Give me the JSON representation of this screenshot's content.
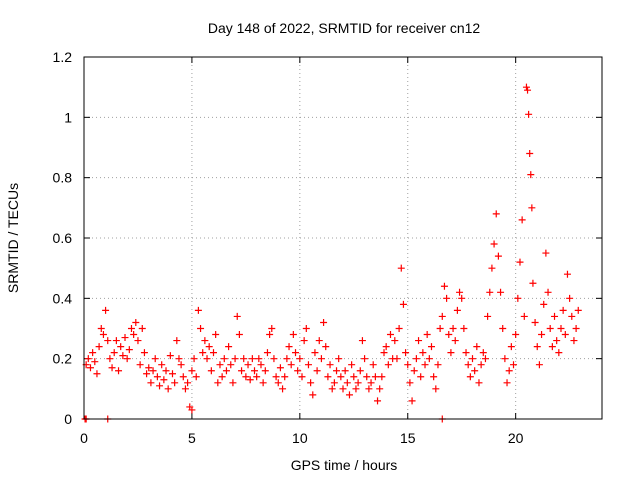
{
  "chart_data": {
    "type": "scatter",
    "title": "Day 148 of 2022, SRMTID for receiver cn12",
    "xlabel": "GPS time / hours",
    "ylabel": "SRMTID / TECUs",
    "xlim": [
      0,
      24
    ],
    "ylim": [
      0,
      1.2
    ],
    "xticks": [
      0,
      5,
      10,
      15,
      20
    ],
    "xtick_labels": [
      "0",
      "5",
      "10",
      "15",
      "20"
    ],
    "yticks": [
      0,
      0.2,
      0.4,
      0.6,
      0.8,
      1.0,
      1.2
    ],
    "ytick_labels": [
      "0",
      "0.2",
      "0.4",
      "0.6",
      "0.8",
      "1",
      "1.2"
    ],
    "grid": true,
    "marker": "+",
    "series": [
      {
        "name": "SRMTID",
        "color": "#ff0000",
        "points": [
          [
            0.05,
            0.0
          ],
          [
            0.1,
            0.0
          ],
          [
            1.1,
            0.0
          ],
          [
            16.6,
            0.0
          ],
          [
            0.1,
            0.18
          ],
          [
            0.2,
            0.2
          ],
          [
            0.3,
            0.17
          ],
          [
            0.4,
            0.22
          ],
          [
            0.5,
            0.19
          ],
          [
            0.6,
            0.15
          ],
          [
            0.7,
            0.24
          ],
          [
            0.8,
            0.3
          ],
          [
            0.9,
            0.28
          ],
          [
            1.0,
            0.36
          ],
          [
            1.1,
            0.26
          ],
          [
            1.2,
            0.2
          ],
          [
            1.3,
            0.17
          ],
          [
            1.4,
            0.22
          ],
          [
            1.5,
            0.26
          ],
          [
            1.6,
            0.16
          ],
          [
            1.7,
            0.24
          ],
          [
            1.8,
            0.21
          ],
          [
            1.9,
            0.27
          ],
          [
            2.0,
            0.2
          ],
          [
            2.1,
            0.23
          ],
          [
            2.2,
            0.3
          ],
          [
            2.3,
            0.28
          ],
          [
            2.4,
            0.32
          ],
          [
            2.5,
            0.26
          ],
          [
            2.6,
            0.18
          ],
          [
            2.7,
            0.3
          ],
          [
            2.8,
            0.22
          ],
          [
            2.9,
            0.15
          ],
          [
            3.0,
            0.17
          ],
          [
            3.1,
            0.12
          ],
          [
            3.2,
            0.16
          ],
          [
            3.3,
            0.2
          ],
          [
            3.4,
            0.14
          ],
          [
            3.5,
            0.11
          ],
          [
            3.6,
            0.18
          ],
          [
            3.7,
            0.13
          ],
          [
            3.8,
            0.16
          ],
          [
            3.9,
            0.1
          ],
          [
            4.0,
            0.21
          ],
          [
            4.1,
            0.15
          ],
          [
            4.2,
            0.12
          ],
          [
            4.3,
            0.26
          ],
          [
            4.4,
            0.2
          ],
          [
            4.5,
            0.18
          ],
          [
            4.6,
            0.14
          ],
          [
            4.7,
            0.1
          ],
          [
            4.8,
            0.12
          ],
          [
            4.9,
            0.04
          ],
          [
            5.0,
            0.03
          ],
          [
            5.0,
            0.16
          ],
          [
            5.1,
            0.2
          ],
          [
            5.2,
            0.14
          ],
          [
            5.3,
            0.36
          ],
          [
            5.4,
            0.3
          ],
          [
            5.5,
            0.22
          ],
          [
            5.6,
            0.26
          ],
          [
            5.7,
            0.2
          ],
          [
            5.8,
            0.24
          ],
          [
            5.9,
            0.16
          ],
          [
            6.0,
            0.22
          ],
          [
            6.1,
            0.28
          ],
          [
            6.2,
            0.12
          ],
          [
            6.3,
            0.18
          ],
          [
            6.4,
            0.14
          ],
          [
            6.5,
            0.2
          ],
          [
            6.6,
            0.16
          ],
          [
            6.7,
            0.24
          ],
          [
            6.8,
            0.18
          ],
          [
            6.9,
            0.12
          ],
          [
            7.0,
            0.2
          ],
          [
            7.1,
            0.34
          ],
          [
            7.2,
            0.28
          ],
          [
            7.3,
            0.16
          ],
          [
            7.4,
            0.2
          ],
          [
            7.5,
            0.14
          ],
          [
            7.6,
            0.18
          ],
          [
            7.7,
            0.13
          ],
          [
            7.8,
            0.2
          ],
          [
            7.9,
            0.16
          ],
          [
            8.0,
            0.14
          ],
          [
            8.1,
            0.2
          ],
          [
            8.2,
            0.18
          ],
          [
            8.3,
            0.12
          ],
          [
            8.4,
            0.16
          ],
          [
            8.5,
            0.22
          ],
          [
            8.6,
            0.28
          ],
          [
            8.7,
            0.3
          ],
          [
            8.8,
            0.2
          ],
          [
            8.9,
            0.14
          ],
          [
            9.0,
            0.12
          ],
          [
            9.1,
            0.17
          ],
          [
            9.2,
            0.1
          ],
          [
            9.3,
            0.14
          ],
          [
            9.4,
            0.2
          ],
          [
            9.5,
            0.24
          ],
          [
            9.6,
            0.18
          ],
          [
            9.7,
            0.28
          ],
          [
            9.8,
            0.22
          ],
          [
            9.9,
            0.16
          ],
          [
            10.0,
            0.2
          ],
          [
            10.1,
            0.14
          ],
          [
            10.2,
            0.26
          ],
          [
            10.3,
            0.3
          ],
          [
            10.4,
            0.18
          ],
          [
            10.5,
            0.12
          ],
          [
            10.6,
            0.08
          ],
          [
            10.7,
            0.22
          ],
          [
            10.8,
            0.16
          ],
          [
            10.9,
            0.26
          ],
          [
            11.0,
            0.2
          ],
          [
            11.1,
            0.32
          ],
          [
            11.2,
            0.24
          ],
          [
            11.3,
            0.14
          ],
          [
            11.4,
            0.18
          ],
          [
            11.5,
            0.1
          ],
          [
            11.6,
            0.12
          ],
          [
            11.7,
            0.16
          ],
          [
            11.8,
            0.2
          ],
          [
            11.9,
            0.14
          ],
          [
            12.0,
            0.1
          ],
          [
            12.1,
            0.16
          ],
          [
            12.2,
            0.12
          ],
          [
            12.3,
            0.08
          ],
          [
            12.4,
            0.18
          ],
          [
            12.5,
            0.14
          ],
          [
            12.6,
            0.1
          ],
          [
            12.7,
            0.12
          ],
          [
            12.8,
            0.16
          ],
          [
            12.9,
            0.26
          ],
          [
            13.0,
            0.2
          ],
          [
            13.1,
            0.14
          ],
          [
            13.2,
            0.1
          ],
          [
            13.3,
            0.12
          ],
          [
            13.4,
            0.18
          ],
          [
            13.5,
            0.14
          ],
          [
            13.6,
            0.06
          ],
          [
            13.7,
            0.1
          ],
          [
            13.8,
            0.14
          ],
          [
            13.9,
            0.22
          ],
          [
            14.0,
            0.24
          ],
          [
            14.1,
            0.18
          ],
          [
            14.2,
            0.28
          ],
          [
            14.3,
            0.2
          ],
          [
            14.4,
            0.26
          ],
          [
            14.5,
            0.2
          ],
          [
            14.6,
            0.3
          ],
          [
            14.7,
            0.5
          ],
          [
            14.8,
            0.38
          ],
          [
            14.9,
            0.22
          ],
          [
            15.0,
            0.18
          ],
          [
            15.1,
            0.12
          ],
          [
            15.2,
            0.06
          ],
          [
            15.3,
            0.16
          ],
          [
            15.4,
            0.2
          ],
          [
            15.5,
            0.26
          ],
          [
            15.6,
            0.14
          ],
          [
            15.7,
            0.22
          ],
          [
            15.8,
            0.18
          ],
          [
            15.9,
            0.28
          ],
          [
            16.0,
            0.2
          ],
          [
            16.1,
            0.24
          ],
          [
            16.2,
            0.14
          ],
          [
            16.3,
            0.1
          ],
          [
            16.4,
            0.18
          ],
          [
            16.5,
            0.3
          ],
          [
            16.6,
            0.34
          ],
          [
            16.7,
            0.44
          ],
          [
            16.8,
            0.4
          ],
          [
            16.9,
            0.28
          ],
          [
            17.0,
            0.22
          ],
          [
            17.1,
            0.3
          ],
          [
            17.2,
            0.26
          ],
          [
            17.3,
            0.36
          ],
          [
            17.4,
            0.42
          ],
          [
            17.5,
            0.4
          ],
          [
            17.6,
            0.3
          ],
          [
            17.7,
            0.22
          ],
          [
            17.8,
            0.18
          ],
          [
            17.9,
            0.14
          ],
          [
            18.0,
            0.2
          ],
          [
            18.1,
            0.16
          ],
          [
            18.2,
            0.24
          ],
          [
            18.3,
            0.12
          ],
          [
            18.4,
            0.18
          ],
          [
            18.5,
            0.22
          ],
          [
            18.6,
            0.2
          ],
          [
            18.7,
            0.34
          ],
          [
            18.8,
            0.42
          ],
          [
            18.9,
            0.5
          ],
          [
            19.0,
            0.58
          ],
          [
            19.1,
            0.68
          ],
          [
            19.2,
            0.54
          ],
          [
            19.3,
            0.42
          ],
          [
            19.4,
            0.3
          ],
          [
            19.5,
            0.2
          ],
          [
            19.6,
            0.12
          ],
          [
            19.7,
            0.16
          ],
          [
            19.8,
            0.24
          ],
          [
            19.9,
            0.18
          ],
          [
            20.0,
            0.28
          ],
          [
            20.1,
            0.4
          ],
          [
            20.2,
            0.52
          ],
          [
            20.3,
            0.66
          ],
          [
            20.4,
            0.34
          ],
          [
            20.5,
            1.1
          ],
          [
            20.55,
            1.09
          ],
          [
            20.6,
            1.01
          ],
          [
            20.65,
            0.88
          ],
          [
            20.7,
            0.81
          ],
          [
            20.75,
            0.7
          ],
          [
            20.8,
            0.45
          ],
          [
            20.9,
            0.32
          ],
          [
            21.0,
            0.24
          ],
          [
            21.1,
            0.18
          ],
          [
            21.2,
            0.28
          ],
          [
            21.3,
            0.38
          ],
          [
            21.4,
            0.55
          ],
          [
            21.5,
            0.42
          ],
          [
            21.6,
            0.3
          ],
          [
            21.7,
            0.24
          ],
          [
            21.8,
            0.34
          ],
          [
            21.9,
            0.26
          ],
          [
            22.0,
            0.22
          ],
          [
            22.1,
            0.3
          ],
          [
            22.2,
            0.36
          ],
          [
            22.3,
            0.28
          ],
          [
            22.4,
            0.48
          ],
          [
            22.5,
            0.4
          ],
          [
            22.6,
            0.34
          ],
          [
            22.7,
            0.26
          ],
          [
            22.8,
            0.3
          ],
          [
            22.9,
            0.36
          ]
        ]
      }
    ]
  }
}
